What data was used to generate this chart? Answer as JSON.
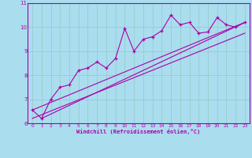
{
  "xlabel": "Windchill (Refroidissement éolien,°C)",
  "bg_color": "#aaddee",
  "line_color": "#aa00aa",
  "grid_color": "#99cccc",
  "axis_color": "#aa00aa",
  "xlim": [
    -0.5,
    23.5
  ],
  "ylim": [
    6,
    11
  ],
  "xticks": [
    0,
    1,
    2,
    3,
    4,
    5,
    6,
    7,
    8,
    9,
    10,
    11,
    12,
    13,
    14,
    15,
    16,
    17,
    18,
    19,
    20,
    21,
    22,
    23
  ],
  "yticks": [
    6,
    7,
    8,
    9,
    10,
    11
  ],
  "scatter_x": [
    0,
    1,
    2,
    3,
    4,
    5,
    6,
    7,
    8,
    9,
    10,
    11,
    12,
    13,
    14,
    15,
    16,
    17,
    18,
    19,
    20,
    21,
    22,
    23
  ],
  "scatter_y": [
    6.55,
    6.2,
    7.0,
    7.5,
    7.6,
    8.2,
    8.3,
    8.55,
    8.3,
    8.7,
    9.95,
    9.0,
    9.5,
    9.6,
    9.85,
    10.5,
    10.1,
    10.2,
    9.75,
    9.8,
    10.4,
    10.1,
    10.0,
    10.2
  ],
  "line1_x": [
    0,
    23
  ],
  "line1_y": [
    6.55,
    10.2
  ],
  "line2_x": [
    0,
    23
  ],
  "line2_y": [
    6.2,
    9.75
  ],
  "line3_x": [
    1,
    23
  ],
  "line3_y": [
    6.2,
    10.2
  ]
}
